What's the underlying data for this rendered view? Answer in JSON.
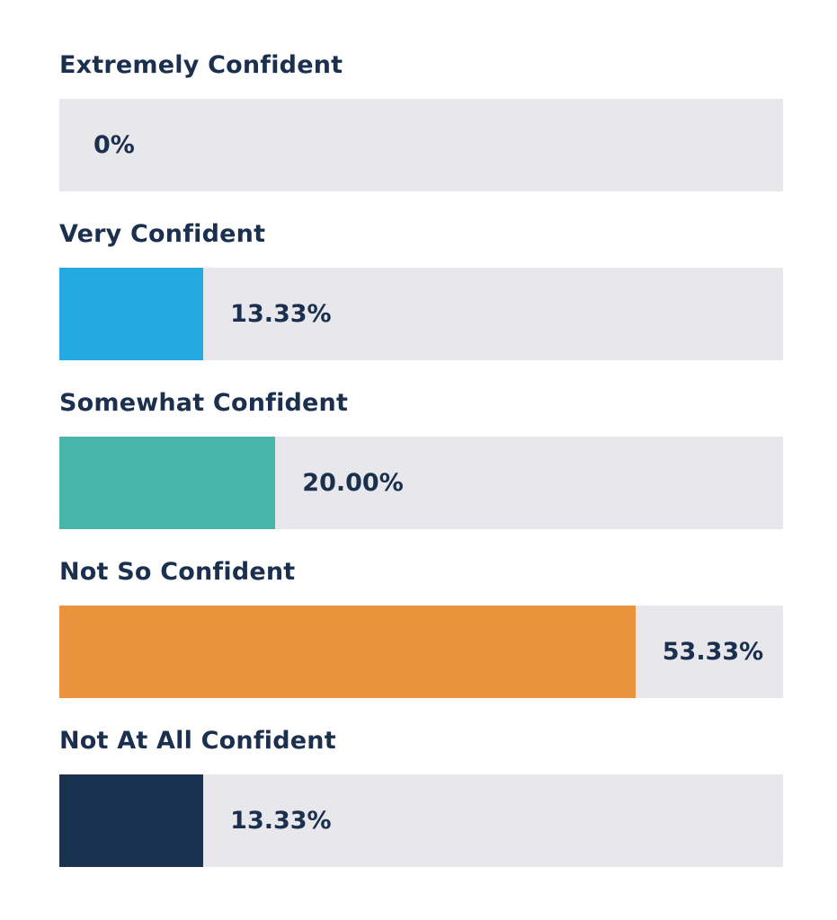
{
  "chart_data": {
    "type": "bar",
    "orientation": "horizontal",
    "categories": [
      "Extremely Confident",
      "Very Confident",
      "Somewhat Confident",
      "Not So Confident",
      "Not At All Confident"
    ],
    "values": [
      0,
      13.33,
      20.0,
      53.33,
      13.33
    ],
    "value_labels": [
      "0%",
      "13.33%",
      "20.00%",
      "53.33%",
      "13.33%"
    ],
    "colors": [
      "#e8e8ec",
      "#24a9e1",
      "#48b5ab",
      "#e9943c",
      "#1b3150"
    ],
    "track_color": "#e8e8ec",
    "text_color": "#1b2f4e",
    "xlim": [
      0,
      67
    ],
    "grid": false,
    "legend": "none"
  }
}
